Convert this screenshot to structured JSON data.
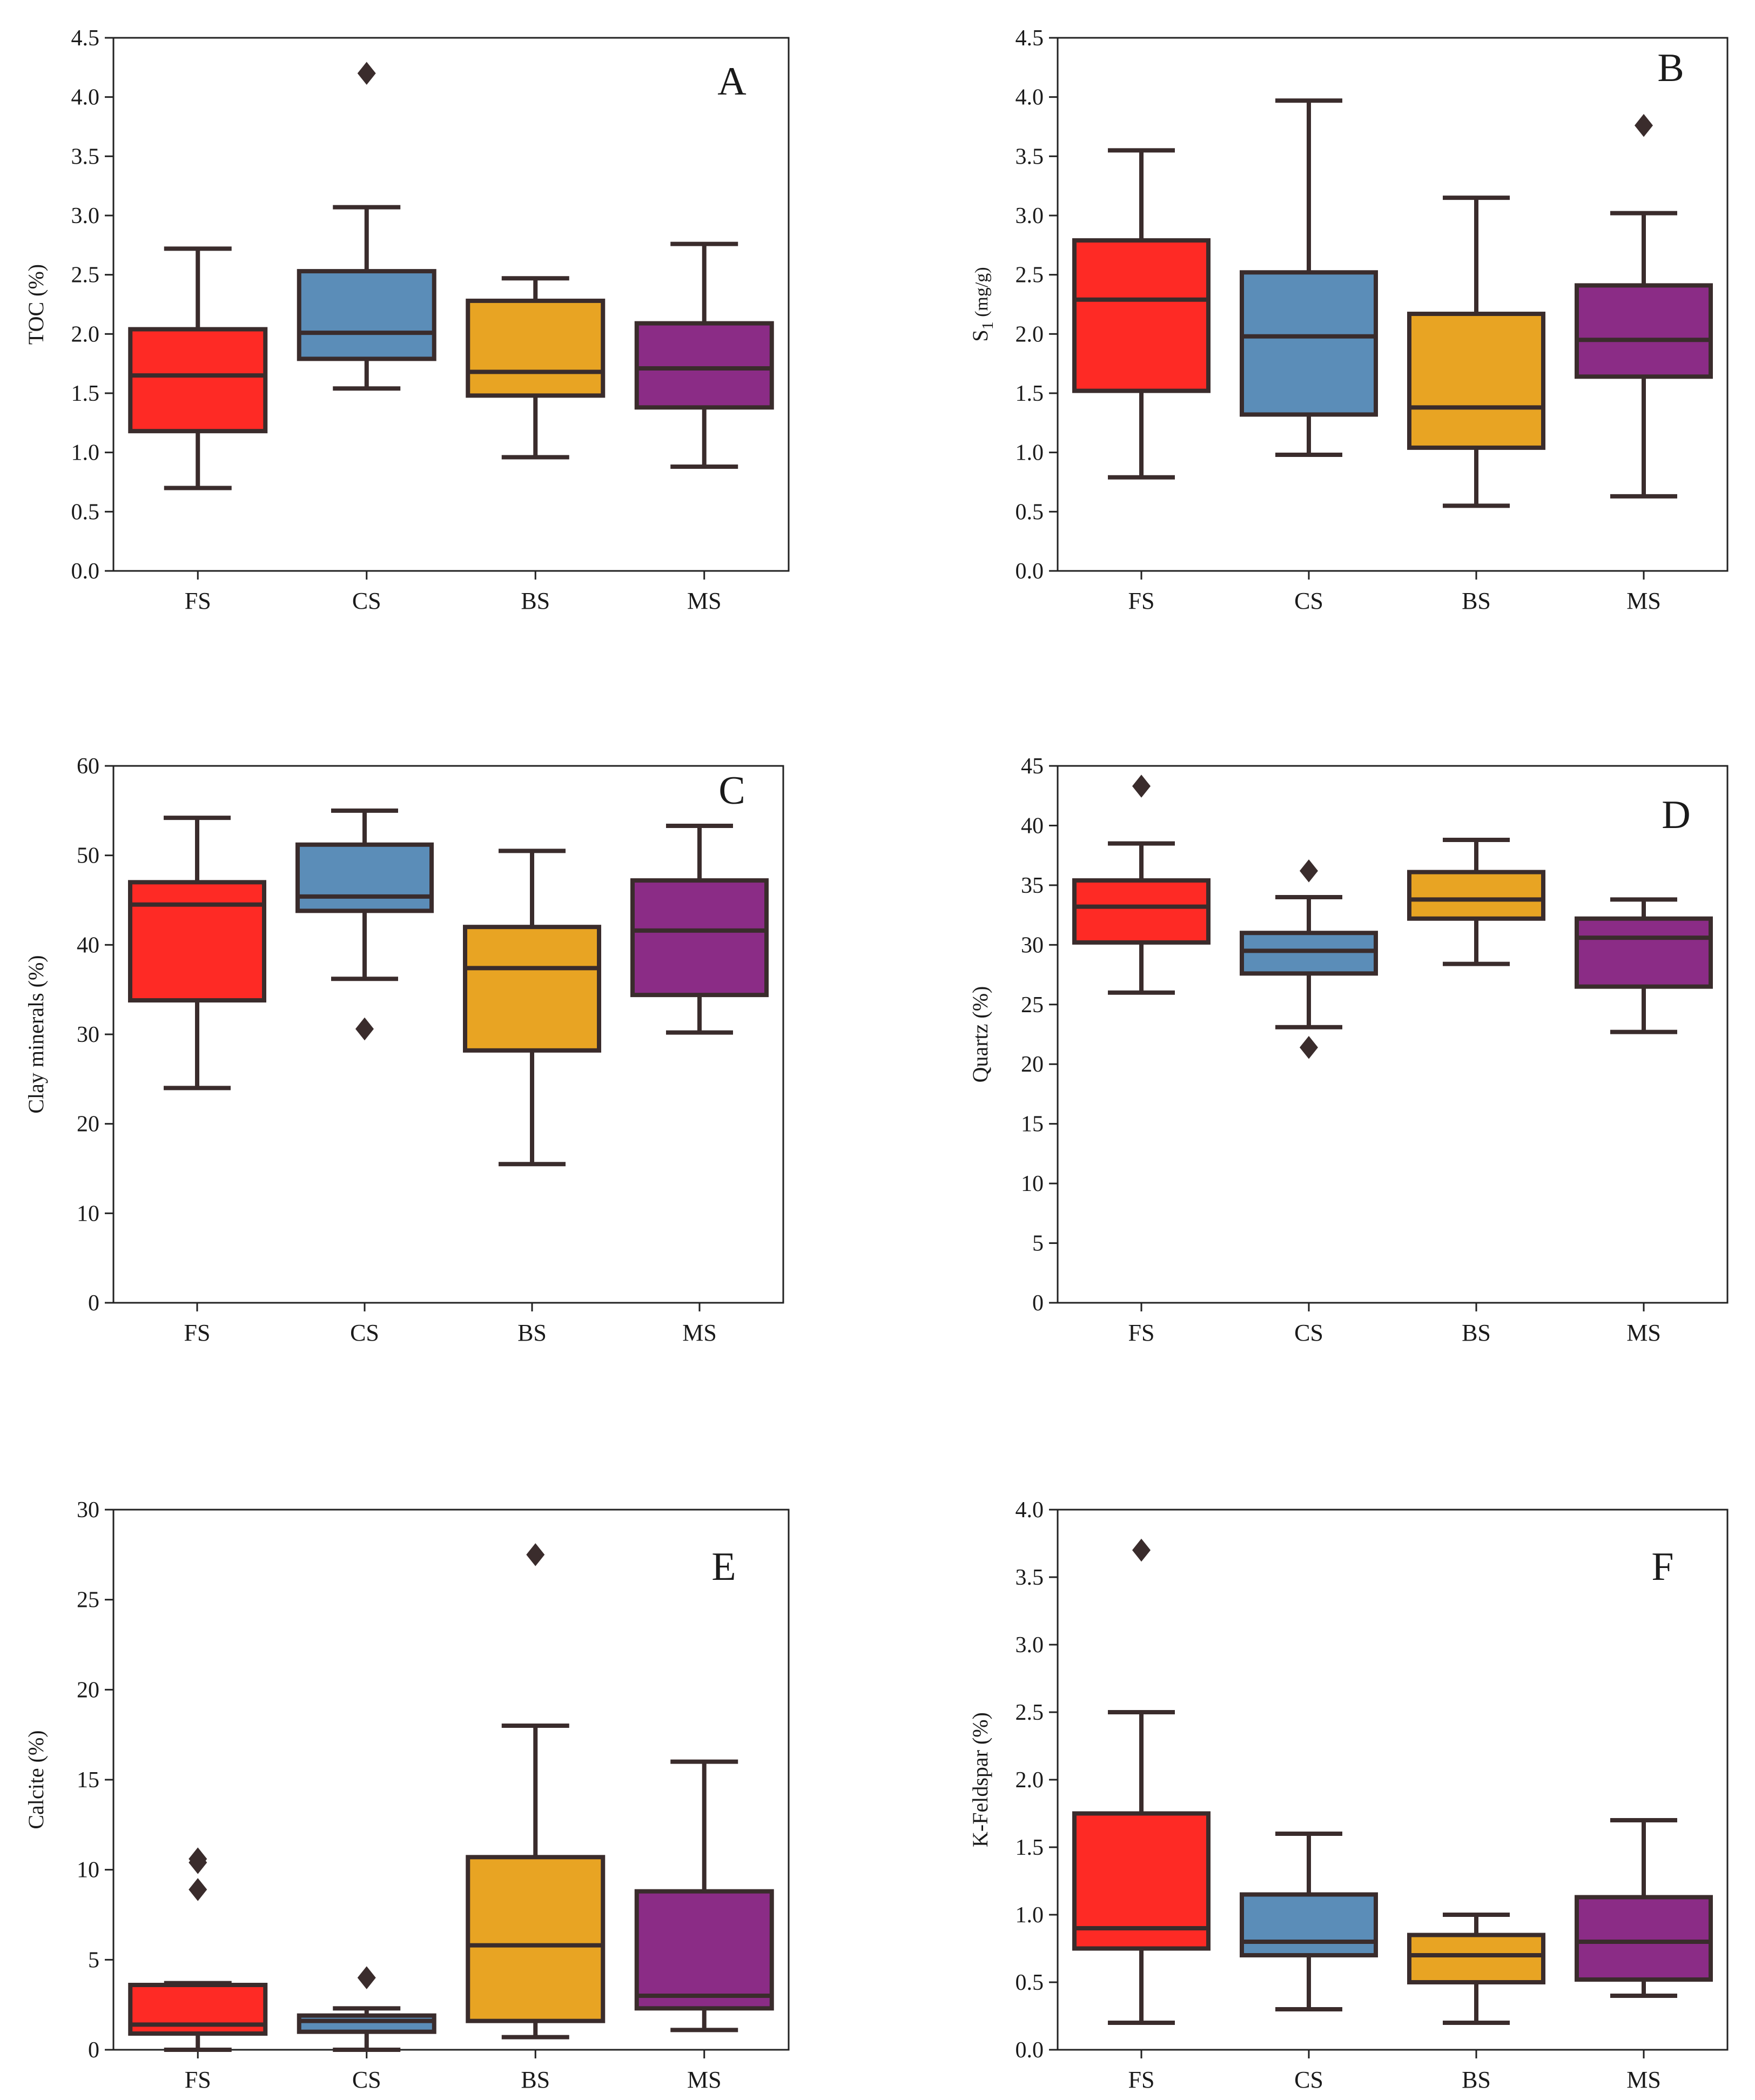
{
  "colors": {
    "FS": "#fe2a25",
    "CS": "#5b8db8",
    "BS": "#e8a423",
    "MS": "#8b2c86",
    "edge": "#3a2c2c",
    "axis": "#222222"
  },
  "chart_data": [
    {
      "type": "box",
      "panel": "A",
      "ylabel": "TOC (%)",
      "ylim": [
        0,
        4.5
      ],
      "yticks": [
        "0.0",
        "0.5",
        "1.0",
        "1.5",
        "2.0",
        "2.5",
        "3.0",
        "3.5",
        "4.0",
        "4.5"
      ],
      "categories": [
        "FS",
        "CS",
        "BS",
        "MS"
      ],
      "boxes": [
        {
          "name": "FS",
          "whislo": 0.7,
          "q1": 1.18,
          "med": 1.65,
          "q3": 2.04,
          "whishi": 2.72,
          "fliers": []
        },
        {
          "name": "CS",
          "whislo": 1.54,
          "q1": 1.79,
          "med": 2.01,
          "q3": 2.53,
          "whishi": 3.07,
          "fliers": [
            4.2
          ]
        },
        {
          "name": "BS",
          "whislo": 0.96,
          "q1": 1.48,
          "med": 1.68,
          "q3": 2.28,
          "whishi": 2.47,
          "fliers": []
        },
        {
          "name": "MS",
          "whislo": 0.88,
          "q1": 1.38,
          "med": 1.71,
          "q3": 2.09,
          "whishi": 2.76,
          "fliers": []
        }
      ]
    },
    {
      "type": "box",
      "panel": "B",
      "ylabel": "S",
      "ylabel_sub": "1",
      "ylabel_unit": " (mg/g)",
      "ylim": [
        0,
        4.5
      ],
      "yticks": [
        "0.0",
        "0.5",
        "1.0",
        "1.5",
        "2.0",
        "2.5",
        "3.0",
        "3.5",
        "4.0",
        "4.5"
      ],
      "categories": [
        "FS",
        "CS",
        "BS",
        "MS"
      ],
      "boxes": [
        {
          "name": "FS",
          "whislo": 0.79,
          "q1": 1.52,
          "med": 2.29,
          "q3": 2.79,
          "whishi": 3.55,
          "fliers": []
        },
        {
          "name": "CS",
          "whislo": 0.98,
          "q1": 1.32,
          "med": 1.98,
          "q3": 2.52,
          "whishi": 3.97,
          "fliers": []
        },
        {
          "name": "BS",
          "whislo": 0.55,
          "q1": 1.04,
          "med": 1.38,
          "q3": 2.17,
          "whishi": 3.15,
          "fliers": []
        },
        {
          "name": "MS",
          "whislo": 0.63,
          "q1": 1.64,
          "med": 1.95,
          "q3": 2.41,
          "whishi": 3.02,
          "fliers": [
            3.76
          ]
        }
      ]
    },
    {
      "type": "box",
      "panel": "C",
      "ylabel": "Clay minerals (%)",
      "ylim": [
        0,
        60
      ],
      "yticks": [
        "0",
        "10",
        "20",
        "30",
        "40",
        "50",
        "60"
      ],
      "categories": [
        "FS",
        "CS",
        "BS",
        "MS"
      ],
      "boxes": [
        {
          "name": "FS",
          "whislo": 24.0,
          "q1": 33.8,
          "med": 44.5,
          "q3": 47.0,
          "whishi": 54.2,
          "fliers": []
        },
        {
          "name": "CS",
          "whislo": 36.2,
          "q1": 43.8,
          "med": 45.4,
          "q3": 51.2,
          "whishi": 55.0,
          "fliers": [
            30.6
          ]
        },
        {
          "name": "BS",
          "whislo": 15.5,
          "q1": 28.2,
          "med": 37.4,
          "q3": 42.0,
          "whishi": 50.5,
          "fliers": []
        },
        {
          "name": "MS",
          "whislo": 30.2,
          "q1": 34.4,
          "med": 41.6,
          "q3": 47.2,
          "whishi": 53.3,
          "fliers": []
        }
      ]
    },
    {
      "type": "box",
      "panel": "D",
      "ylabel": "Quartz (%)",
      "ylim": [
        0,
        45
      ],
      "yticks": [
        "0",
        "5",
        "10",
        "15",
        "20",
        "25",
        "30",
        "35",
        "40",
        "45"
      ],
      "categories": [
        "FS",
        "CS",
        "BS",
        "MS"
      ],
      "boxes": [
        {
          "name": "FS",
          "whislo": 26.0,
          "q1": 30.2,
          "med": 33.2,
          "q3": 35.4,
          "whishi": 38.5,
          "fliers": [
            43.3
          ]
        },
        {
          "name": "CS",
          "whislo": 23.1,
          "q1": 27.6,
          "med": 29.5,
          "q3": 31.0,
          "whishi": 34.0,
          "fliers": [
            36.2,
            21.4
          ]
        },
        {
          "name": "BS",
          "whislo": 28.4,
          "q1": 32.2,
          "med": 33.8,
          "q3": 36.1,
          "whishi": 38.8,
          "fliers": []
        },
        {
          "name": "MS",
          "whislo": 22.7,
          "q1": 26.5,
          "med": 30.6,
          "q3": 32.2,
          "whishi": 33.8,
          "fliers": []
        }
      ]
    },
    {
      "type": "box",
      "panel": "E",
      "ylabel": "Calcite (%)",
      "ylim": [
        0,
        30
      ],
      "yticks": [
        "0",
        "5",
        "10",
        "15",
        "20",
        "25",
        "30"
      ],
      "categories": [
        "FS",
        "CS",
        "BS",
        "MS"
      ],
      "boxes": [
        {
          "name": "FS",
          "whislo": 0.0,
          "q1": 0.9,
          "med": 1.4,
          "q3": 3.6,
          "whishi": 3.7,
          "fliers": [
            10.6,
            10.4,
            8.9
          ]
        },
        {
          "name": "CS",
          "whislo": 0.0,
          "q1": 1.0,
          "med": 1.6,
          "q3": 1.9,
          "whishi": 2.3,
          "fliers": [
            4.0
          ]
        },
        {
          "name": "BS",
          "whislo": 0.7,
          "q1": 1.6,
          "med": 5.8,
          "q3": 10.7,
          "whishi": 18.0,
          "fliers": [
            27.5
          ]
        },
        {
          "name": "MS",
          "whislo": 1.1,
          "q1": 2.3,
          "med": 3.0,
          "q3": 8.8,
          "whishi": 16.0,
          "fliers": []
        }
      ]
    },
    {
      "type": "box",
      "panel": "F",
      "ylabel": "K-Feldspar (%)",
      "ylim": [
        0,
        4.0
      ],
      "yticks": [
        "0.0",
        "0.5",
        "1.0",
        "1.5",
        "2.0",
        "2.5",
        "3.0",
        "3.5",
        "4.0"
      ],
      "categories": [
        "FS",
        "CS",
        "BS",
        "MS"
      ],
      "boxes": [
        {
          "name": "FS",
          "whislo": 0.2,
          "q1": 0.75,
          "med": 0.9,
          "q3": 1.75,
          "whishi": 2.5,
          "fliers": [
            3.7
          ]
        },
        {
          "name": "CS",
          "whislo": 0.3,
          "q1": 0.7,
          "med": 0.8,
          "q3": 1.15,
          "whishi": 1.6,
          "fliers": []
        },
        {
          "name": "BS",
          "whislo": 0.2,
          "q1": 0.5,
          "med": 0.7,
          "q3": 0.85,
          "whishi": 1.0,
          "fliers": []
        },
        {
          "name": "MS",
          "whislo": 0.4,
          "q1": 0.52,
          "med": 0.8,
          "q3": 1.13,
          "whishi": 1.7,
          "fliers": []
        }
      ]
    }
  ]
}
